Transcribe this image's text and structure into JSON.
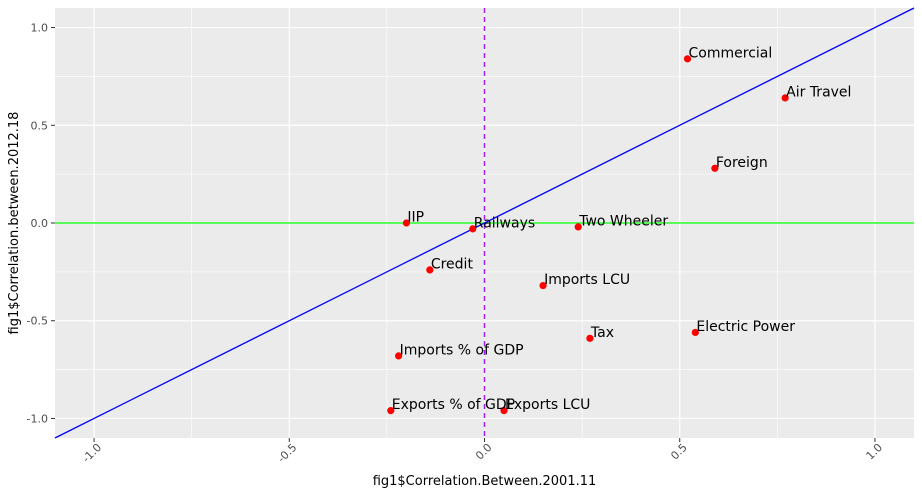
{
  "chart_data": {
    "type": "scatter",
    "xlabel": "fig1$Correlation.Between.2001.11",
    "ylabel": "fig1$Correlation.between.2012.18",
    "xlim": [
      -1.1,
      1.1
    ],
    "ylim": [
      -1.1,
      1.1
    ],
    "x_ticks": [
      {
        "value": -1.0,
        "label": "-1.0"
      },
      {
        "value": -0.5,
        "label": "-0.5"
      },
      {
        "value": 0.0,
        "label": "0.0"
      },
      {
        "value": 0.5,
        "label": "0.5"
      },
      {
        "value": 1.0,
        "label": "1.0"
      }
    ],
    "y_ticks": [
      {
        "value": 1.0,
        "label": "1.0"
      },
      {
        "value": 0.5,
        "label": "0.5"
      },
      {
        "value": 0.0,
        "label": "0.0"
      },
      {
        "value": -0.5,
        "label": "-0.5"
      },
      {
        "value": -1.0,
        "label": "-1.0"
      }
    ],
    "grid": true,
    "point_color": "#ff0000",
    "reference_lines": {
      "diagonal": {
        "slope": 1,
        "intercept": 0,
        "color": "#0000ff"
      },
      "horizontal": {
        "y": 0,
        "color": "#00ff00"
      },
      "vertical": {
        "x": 0,
        "color": "#a020f0",
        "style": "dashed"
      }
    },
    "points": [
      {
        "label": "Commercial",
        "x": 0.52,
        "y": 0.84
      },
      {
        "label": "Air Travel",
        "x": 0.77,
        "y": 0.64
      },
      {
        "label": "Foreign",
        "x": 0.59,
        "y": 0.28
      },
      {
        "label": "IIP",
        "x": -0.2,
        "y": 0.0
      },
      {
        "label": "Railways",
        "x": -0.03,
        "y": -0.03
      },
      {
        "label": "Two Wheeler",
        "x": 0.24,
        "y": -0.02
      },
      {
        "label": "Credit",
        "x": -0.14,
        "y": -0.24
      },
      {
        "label": "Imports LCU",
        "x": 0.15,
        "y": -0.32
      },
      {
        "label": "Tax",
        "x": 0.27,
        "y": -0.59
      },
      {
        "label": "Electric Power",
        "x": 0.54,
        "y": -0.56
      },
      {
        "label": "Imports % of GDP",
        "x": -0.22,
        "y": -0.68
      },
      {
        "label": "Exports % of GDP",
        "x": -0.24,
        "y": -0.96
      },
      {
        "label": "Exports LCU",
        "x": 0.05,
        "y": -0.96
      }
    ]
  }
}
